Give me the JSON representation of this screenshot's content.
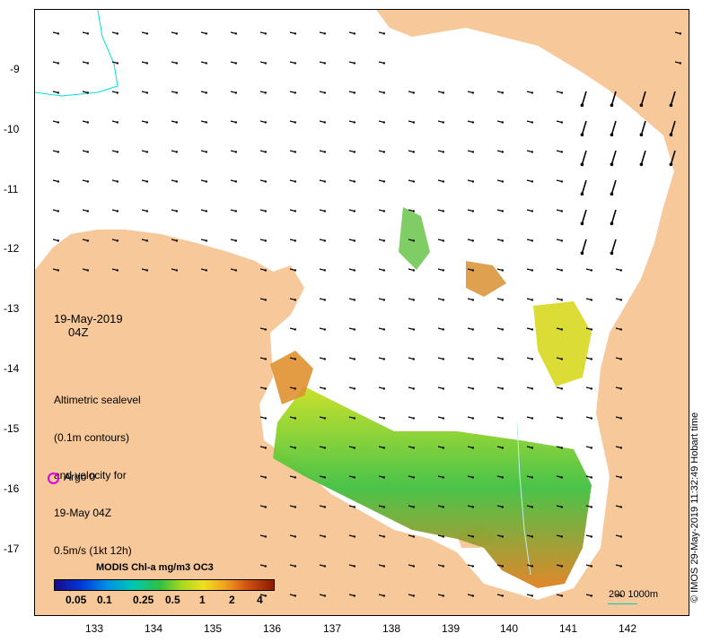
{
  "map": {
    "date_label": "19-May-2019",
    "time_label": "04Z",
    "info_lines": [
      "Altimetric sealevel",
      "(0.1m contours)",
      "and velocity for",
      "19-May 04Z",
      "0.5m/s (1kt 12h)"
    ],
    "argo_label": "Argo 0",
    "colorbar_title": "MODIS Chl-a mg/m3 OC3",
    "colorbar_ticks": [
      "0.05",
      "0.1",
      "0.25",
      "0.5",
      "1",
      "2",
      "4"
    ],
    "scale_label": "200  1000m",
    "credit": "© IMOS 29-May-2019 11:32:49 Hobart time",
    "lat_ticks": [
      "-9",
      "-10",
      "-11",
      "-12",
      "-13",
      "-14",
      "-15",
      "-16",
      "-17"
    ],
    "lon_ticks": [
      "133",
      "134",
      "135",
      "136",
      "137",
      "138",
      "139",
      "140",
      "141",
      "142"
    ],
    "colors": {
      "land": "#f6c89a",
      "ocean": "#ffffff",
      "coast_line": "#000000",
      "contour": "#00e0e0",
      "argo": "#e000e0"
    }
  }
}
